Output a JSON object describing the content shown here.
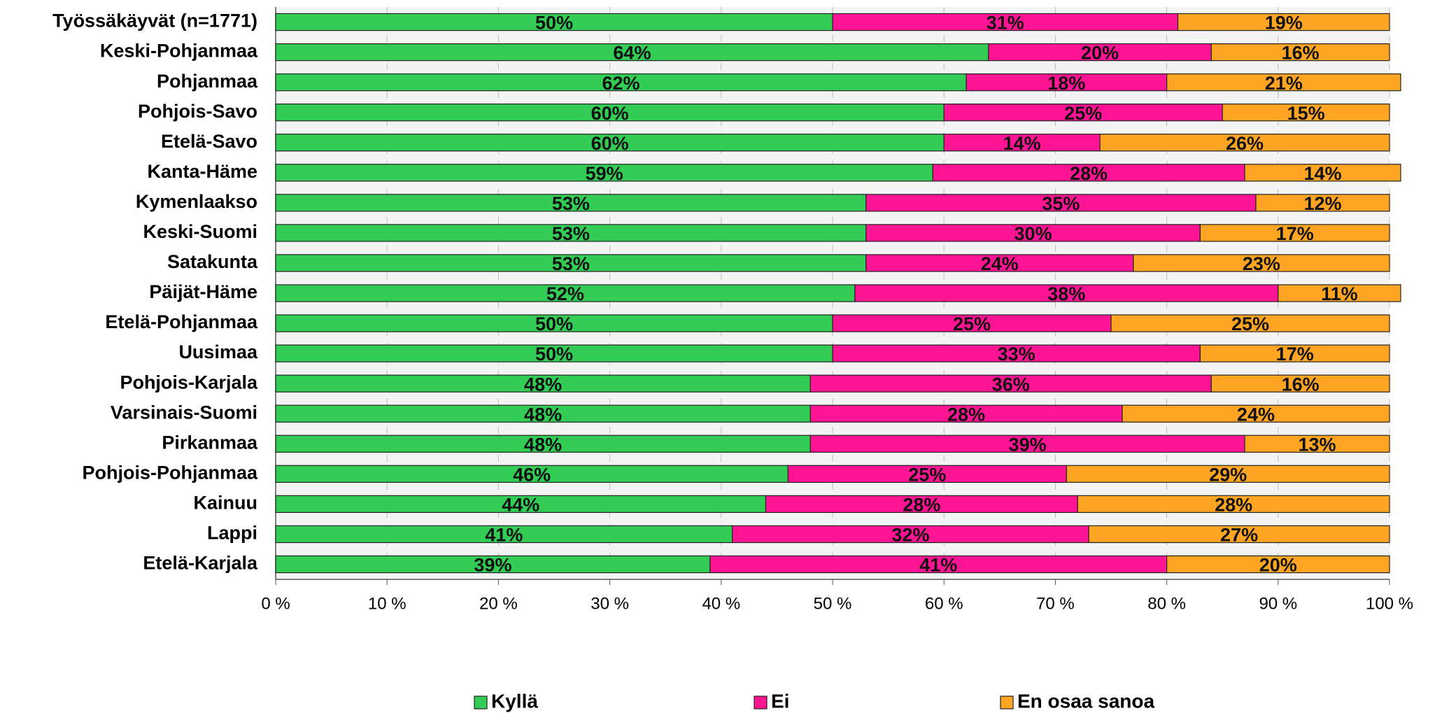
{
  "chart_data": {
    "type": "stacked-bar-horizontal",
    "categories": [
      "Työssäkäyvät (n=1771)",
      "Keski-Pohjanmaa",
      "Pohjanmaa",
      "Pohjois-Savo",
      "Etelä-Savo",
      "Kanta-Häme",
      "Kymenlaakso",
      "Keski-Suomi",
      "Satakunta",
      "Päijät-Häme",
      "Etelä-Pohjanmaa",
      "Uusimaa",
      "Pohjois-Karjala",
      "Varsinais-Suomi",
      "Pirkanmaa",
      "Pohjois-Pohjanmaa",
      "Kainuu",
      "Lappi",
      "Etelä-Karjala"
    ],
    "series": [
      {
        "name": "Kyllä",
        "color": "#33cc55",
        "values": [
          50,
          64,
          62,
          60,
          60,
          59,
          53,
          53,
          53,
          52,
          50,
          50,
          48,
          48,
          48,
          46,
          44,
          41,
          39
        ],
        "value_labels": [
          "50%",
          "64%",
          "62%",
          "60%",
          "60%",
          "59%",
          "53%",
          "53%",
          "53%",
          "52%",
          "50%",
          "50%",
          "48%",
          "48%",
          "48%",
          "46%",
          "44%",
          "41%",
          "39%"
        ]
      },
      {
        "name": "Ei",
        "color": "#ff1493",
        "values": [
          31,
          20,
          18,
          25,
          14,
          28,
          35,
          30,
          24,
          38,
          25,
          33,
          36,
          28,
          39,
          25,
          28,
          32,
          41
        ],
        "value_labels": [
          "31%",
          "20%",
          "18%",
          "25%",
          "14%",
          "28%",
          "35%",
          "30%",
          "24%",
          "38%",
          "25%",
          "33%",
          "36%",
          "28%",
          "39%",
          "25%",
          "28%",
          "32%",
          "41%"
        ]
      },
      {
        "name": "En osaa sanoa",
        "color": "#ffa523",
        "values": [
          19,
          16,
          21,
          15,
          26,
          14,
          12,
          17,
          23,
          11,
          25,
          17,
          16,
          24,
          13,
          29,
          28,
          27,
          20
        ],
        "value_labels": [
          "19%",
          "16%",
          "21%",
          "15%",
          "26%",
          "14%",
          "12%",
          "17%",
          "23%",
          "11%",
          "25%",
          "17%",
          "16%",
          "24%",
          "13%",
          "29%",
          "28%",
          "27%",
          "20%"
        ]
      }
    ],
    "xlim": [
      0,
      100
    ],
    "xticks": [
      {
        "value": 0,
        "label": "0 %"
      },
      {
        "value": 10,
        "label": "10 %"
      },
      {
        "value": 20,
        "label": "20 %"
      },
      {
        "value": 30,
        "label": "30 %"
      },
      {
        "value": 40,
        "label": "40 %"
      },
      {
        "value": 50,
        "label": "50 %"
      },
      {
        "value": 60,
        "label": "60 %"
      },
      {
        "value": 70,
        "label": "70 %"
      },
      {
        "value": 80,
        "label": "80 %"
      },
      {
        "value": 90,
        "label": "90 %"
      },
      {
        "value": 100,
        "label": "100 %"
      }
    ],
    "grid": true,
    "legend": "bottom"
  }
}
